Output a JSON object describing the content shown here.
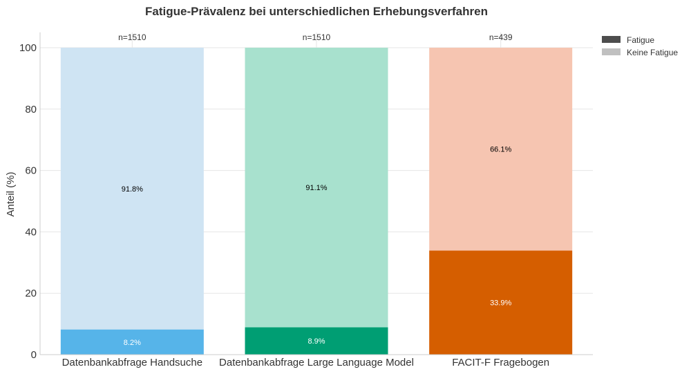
{
  "chart_data": {
    "type": "bar",
    "stacked": true,
    "title": "Fatigue-Prävalenz bei unterschiedlichen Erhebungsverfahren",
    "xlabel": "",
    "ylabel": "Anteil (%)",
    "ylim": [
      0,
      105
    ],
    "yticks": [
      0,
      20,
      40,
      60,
      80,
      100
    ],
    "grid": true,
    "legend_position": "top-right, outside",
    "categories": [
      "Datenbankabfrage Handsuche",
      "Datenbankabfrage Large Language Model",
      "FACIT-F Fragebogen"
    ],
    "sample_sizes": [
      "n=1510",
      "n=1510",
      "n=439"
    ],
    "series": [
      {
        "name": "Fatigue",
        "values": [
          8.2,
          8.9,
          33.9
        ],
        "labels": [
          "8.2%",
          "8.9%",
          "33.9%"
        ],
        "legend_color": "#4d4d4d",
        "colors": [
          "#56b4e9",
          "#009e73",
          "#d55e00"
        ],
        "label_color": "#ffffff"
      },
      {
        "name": "Keine Fatigue",
        "values": [
          91.8,
          91.1,
          66.1
        ],
        "labels": [
          "91.8%",
          "91.1%",
          "66.1%"
        ],
        "legend_color": "#c0c0c0",
        "colors": [
          "#cfe4f3",
          "#a8e1ce",
          "#f6c5b1"
        ],
        "label_color": "#000000"
      }
    ]
  }
}
